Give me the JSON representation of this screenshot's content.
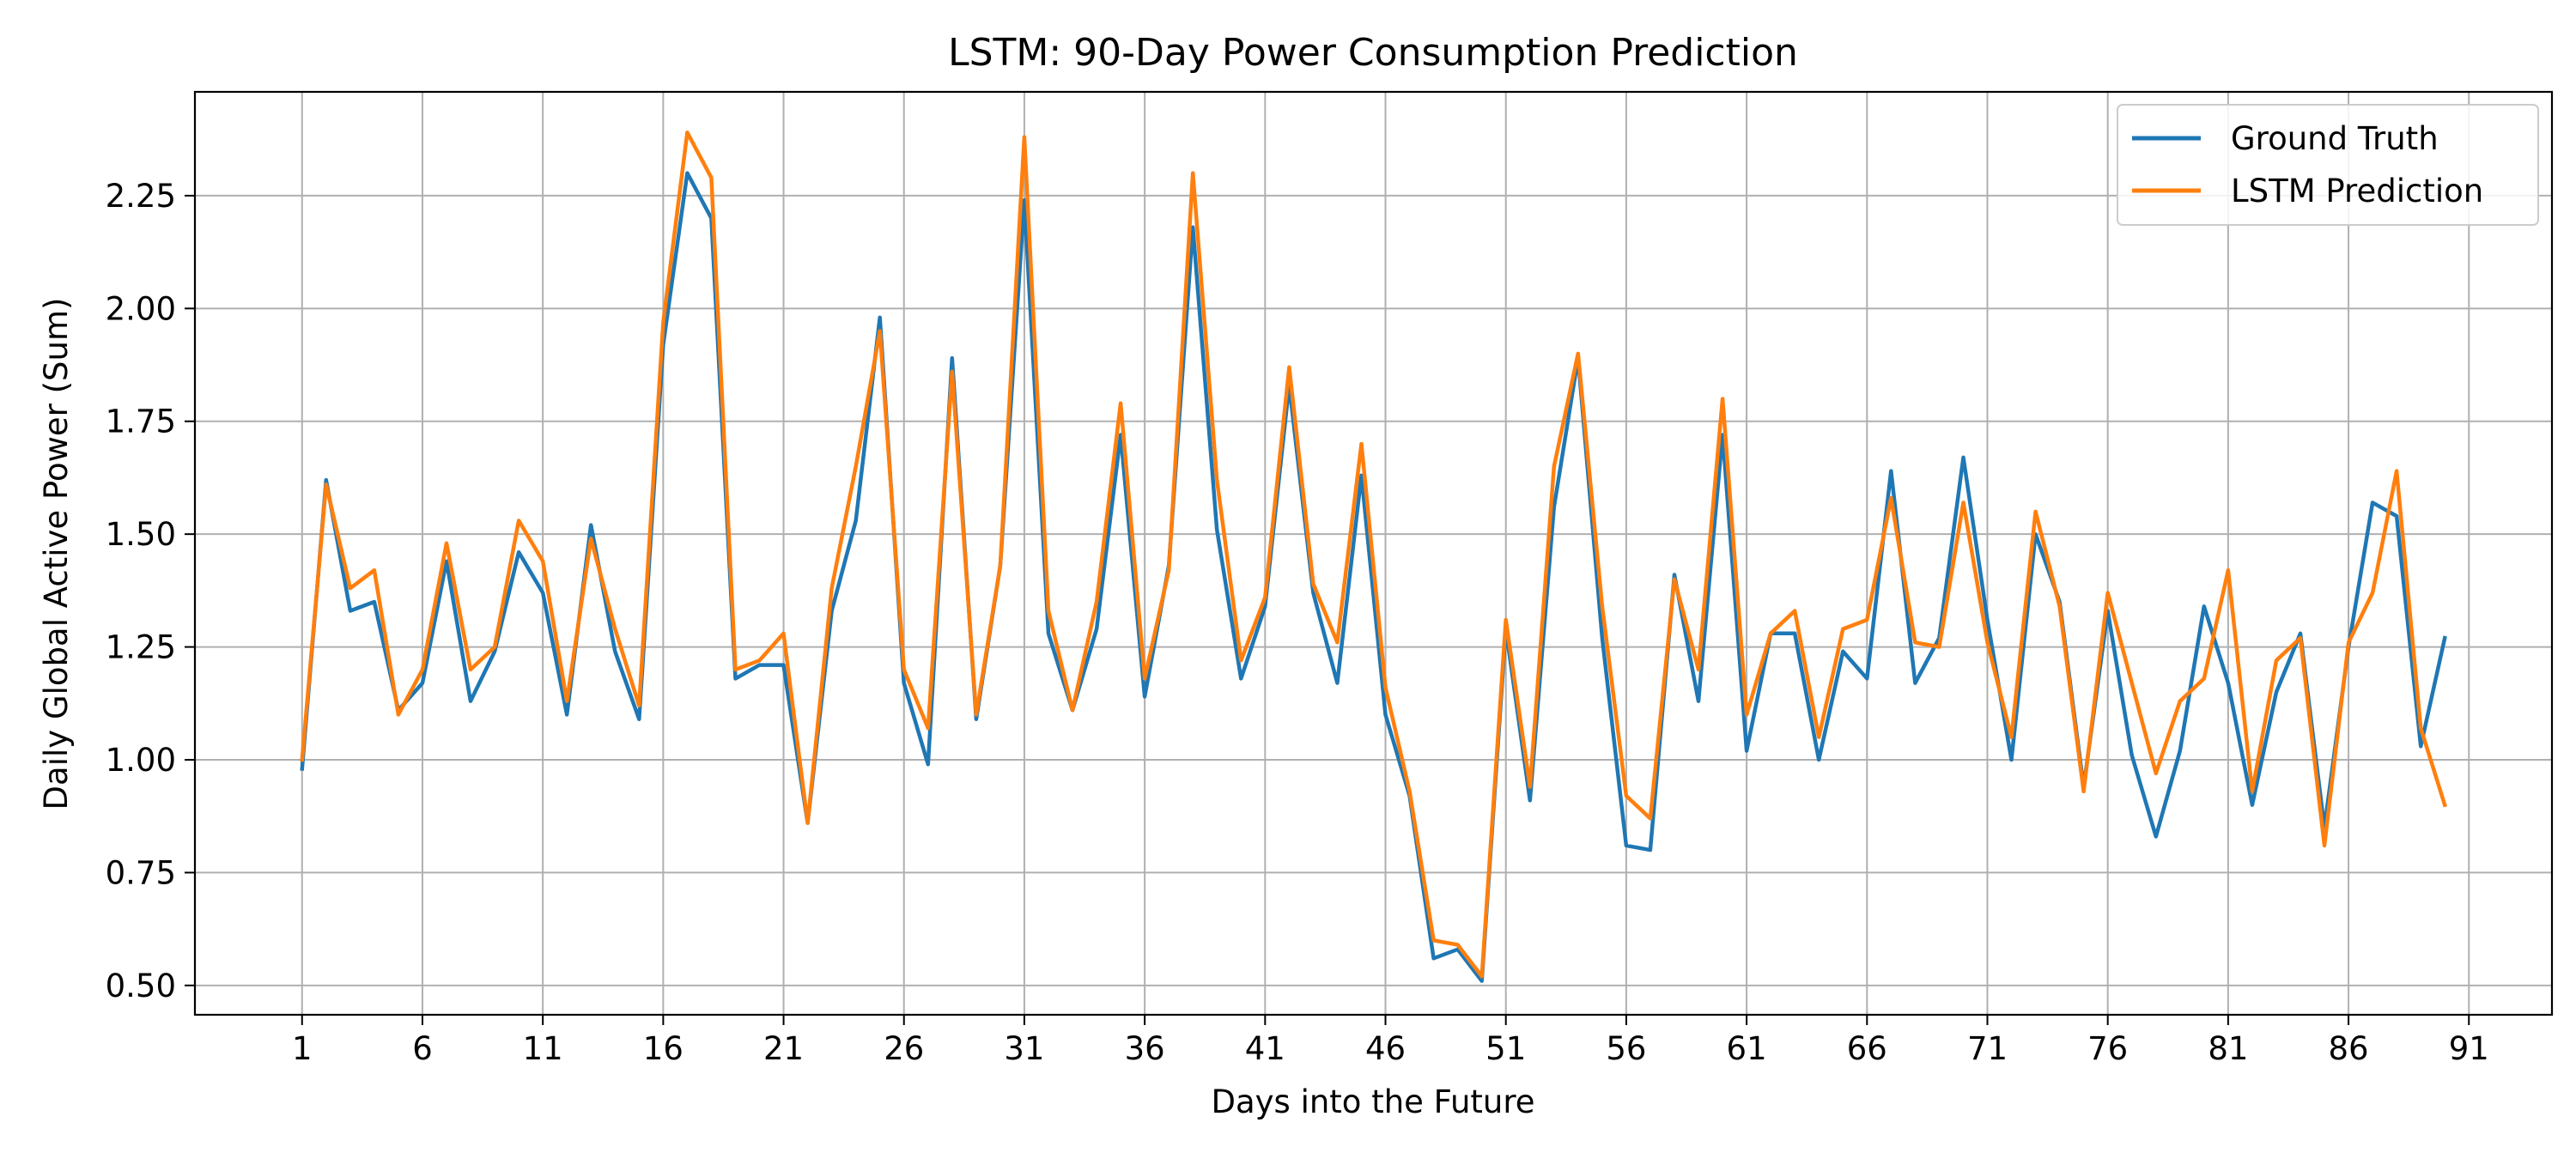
{
  "chart_data": {
    "type": "line",
    "title": "LSTM: 90-Day Power Consumption Prediction",
    "xlabel": "Days into the Future",
    "ylabel": "Daily Global Active Power (Sum)",
    "xlim": [
      -3.45,
      94.45
    ],
    "ylim": [
      0.435,
      2.48
    ],
    "xticks": [
      1,
      6,
      11,
      16,
      21,
      26,
      31,
      36,
      41,
      46,
      51,
      56,
      61,
      66,
      71,
      76,
      81,
      86,
      91
    ],
    "yticks": [
      0.5,
      0.75,
      1.0,
      1.25,
      1.5,
      1.75,
      2.0,
      2.25
    ],
    "ytick_labels": [
      "0.50",
      "0.75",
      "1.00",
      "1.25",
      "1.50",
      "1.75",
      "2.00",
      "2.25"
    ],
    "grid": true,
    "legend_position": "top-right",
    "x": [
      1,
      2,
      3,
      4,
      5,
      6,
      7,
      8,
      9,
      10,
      11,
      12,
      13,
      14,
      15,
      16,
      17,
      18,
      19,
      20,
      21,
      22,
      23,
      24,
      25,
      26,
      27,
      28,
      29,
      30,
      31,
      32,
      33,
      34,
      35,
      36,
      37,
      38,
      39,
      40,
      41,
      42,
      43,
      44,
      45,
      46,
      47,
      48,
      49,
      50,
      51,
      52,
      53,
      54,
      55,
      56,
      57,
      58,
      59,
      60,
      61,
      62,
      63,
      64,
      65,
      66,
      67,
      68,
      69,
      70,
      71,
      72,
      73,
      74,
      75,
      76,
      77,
      78,
      79,
      80,
      81,
      82,
      83,
      84,
      85,
      86,
      87,
      88,
      89,
      90
    ],
    "series": [
      {
        "name": "Ground Truth",
        "color": "#1f77b4",
        "values": [
          0.98,
          1.62,
          1.33,
          1.35,
          1.11,
          1.17,
          1.44,
          1.13,
          1.24,
          1.46,
          1.37,
          1.1,
          1.52,
          1.24,
          1.09,
          1.92,
          2.3,
          2.2,
          1.18,
          1.21,
          1.21,
          0.86,
          1.33,
          1.53,
          1.98,
          1.17,
          0.99,
          1.89,
          1.09,
          1.43,
          2.24,
          1.28,
          1.11,
          1.29,
          1.72,
          1.14,
          1.43,
          2.18,
          1.51,
          1.18,
          1.34,
          1.83,
          1.37,
          1.17,
          1.63,
          1.1,
          0.92,
          0.56,
          0.58,
          0.51,
          1.29,
          0.91,
          1.56,
          1.89,
          1.27,
          0.81,
          0.8,
          1.41,
          1.13,
          1.72,
          1.02,
          1.28,
          1.28,
          1.0,
          1.24,
          1.18,
          1.64,
          1.17,
          1.27,
          1.67,
          1.31,
          1.0,
          1.5,
          1.35,
          0.94,
          1.33,
          1.01,
          0.83,
          1.02,
          1.34,
          1.17,
          0.9,
          1.15,
          1.28,
          0.85,
          1.25,
          1.57,
          1.54,
          1.03,
          1.27
        ]
      },
      {
        "name": "LSTM Prediction",
        "color": "#ff7f0e",
        "values": [
          1.0,
          1.61,
          1.38,
          1.42,
          1.1,
          1.2,
          1.48,
          1.2,
          1.25,
          1.53,
          1.44,
          1.13,
          1.49,
          1.29,
          1.12,
          1.97,
          2.39,
          2.29,
          1.2,
          1.22,
          1.28,
          0.86,
          1.38,
          1.65,
          1.95,
          1.2,
          1.07,
          1.86,
          1.1,
          1.43,
          2.38,
          1.33,
          1.11,
          1.35,
          1.79,
          1.18,
          1.42,
          2.3,
          1.62,
          1.22,
          1.36,
          1.87,
          1.39,
          1.26,
          1.7,
          1.16,
          0.93,
          0.6,
          0.59,
          0.52,
          1.31,
          0.94,
          1.65,
          1.9,
          1.34,
          0.92,
          0.87,
          1.4,
          1.2,
          1.8,
          1.1,
          1.28,
          1.33,
          1.05,
          1.29,
          1.31,
          1.58,
          1.26,
          1.25,
          1.57,
          1.26,
          1.05,
          1.55,
          1.34,
          0.93,
          1.37,
          1.17,
          0.97,
          1.13,
          1.18,
          1.42,
          0.93,
          1.22,
          1.27,
          0.81,
          1.26,
          1.37,
          1.64,
          1.07,
          0.9
        ]
      }
    ]
  }
}
